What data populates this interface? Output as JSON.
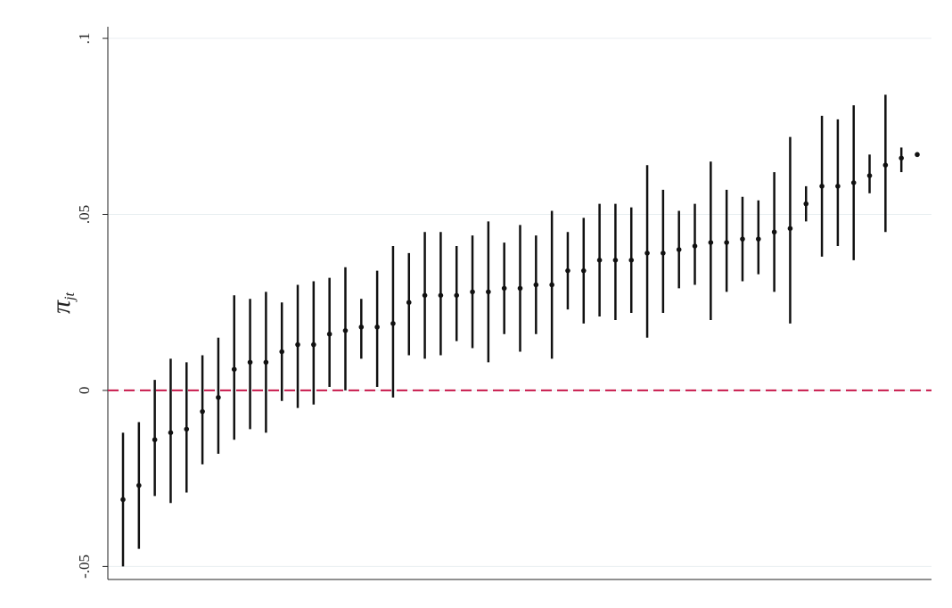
{
  "chart_data": {
    "type": "pointrange",
    "ylabel": {
      "main": "π",
      "sub": "jt"
    },
    "series": [
      {
        "color": "#111111",
        "values": [
          -0.031,
          -0.027,
          -0.014,
          -0.012,
          -0.011,
          -0.006,
          -0.002,
          0.006,
          0.008,
          0.008,
          0.011,
          0.013,
          0.013,
          0.016,
          0.017,
          0.018,
          0.018,
          0.019,
          0.025,
          0.027,
          0.027,
          0.027,
          0.028,
          0.028,
          0.029,
          0.029,
          0.03,
          0.03,
          0.034,
          0.034,
          0.037,
          0.037,
          0.037,
          0.039,
          0.039,
          0.04,
          0.041,
          0.042,
          0.042,
          0.043,
          0.043,
          0.045,
          0.046,
          0.053,
          0.058,
          0.058,
          0.059,
          0.061,
          0.064,
          0.066,
          0.067
        ],
        "lower": [
          -0.05,
          -0.045,
          -0.03,
          -0.032,
          -0.029,
          -0.021,
          -0.018,
          -0.014,
          -0.011,
          -0.012,
          -0.003,
          -0.005,
          -0.004,
          0.001,
          0.0,
          0.009,
          0.001,
          -0.002,
          0.01,
          0.009,
          0.01,
          0.014,
          0.012,
          0.008,
          0.016,
          0.011,
          0.016,
          0.009,
          0.023,
          0.019,
          0.021,
          0.02,
          0.022,
          0.015,
          0.022,
          0.029,
          0.03,
          0.02,
          0.028,
          0.031,
          0.033,
          0.028,
          0.019,
          0.048,
          0.038,
          0.041,
          0.037,
          0.056,
          0.045,
          0.062,
          null
        ],
        "upper": [
          -0.012,
          -0.009,
          0.003,
          0.009,
          0.008,
          0.01,
          0.015,
          0.027,
          0.026,
          0.028,
          0.025,
          0.03,
          0.031,
          0.032,
          0.035,
          0.026,
          0.034,
          0.041,
          0.039,
          0.045,
          0.045,
          0.041,
          0.044,
          0.048,
          0.042,
          0.047,
          0.044,
          0.051,
          0.045,
          0.049,
          0.053,
          0.053,
          0.052,
          0.064,
          0.057,
          0.051,
          0.053,
          0.065,
          0.057,
          0.055,
          0.054,
          0.062,
          0.072,
          0.058,
          0.078,
          0.077,
          0.081,
          0.067,
          0.084,
          0.069,
          null
        ]
      }
    ],
    "ylim": [
      -0.0537,
      0.1033
    ],
    "yticks": [
      {
        "value": -0.05,
        "label": "-.05"
      },
      0,
      {
        "value": 0.05,
        "label": ".05"
      },
      {
        "value": 0.1,
        "label": ".1"
      }
    ],
    "grid": true,
    "reference_line": {
      "value": 0,
      "color": "#c8194b",
      "dashed": true
    }
  }
}
